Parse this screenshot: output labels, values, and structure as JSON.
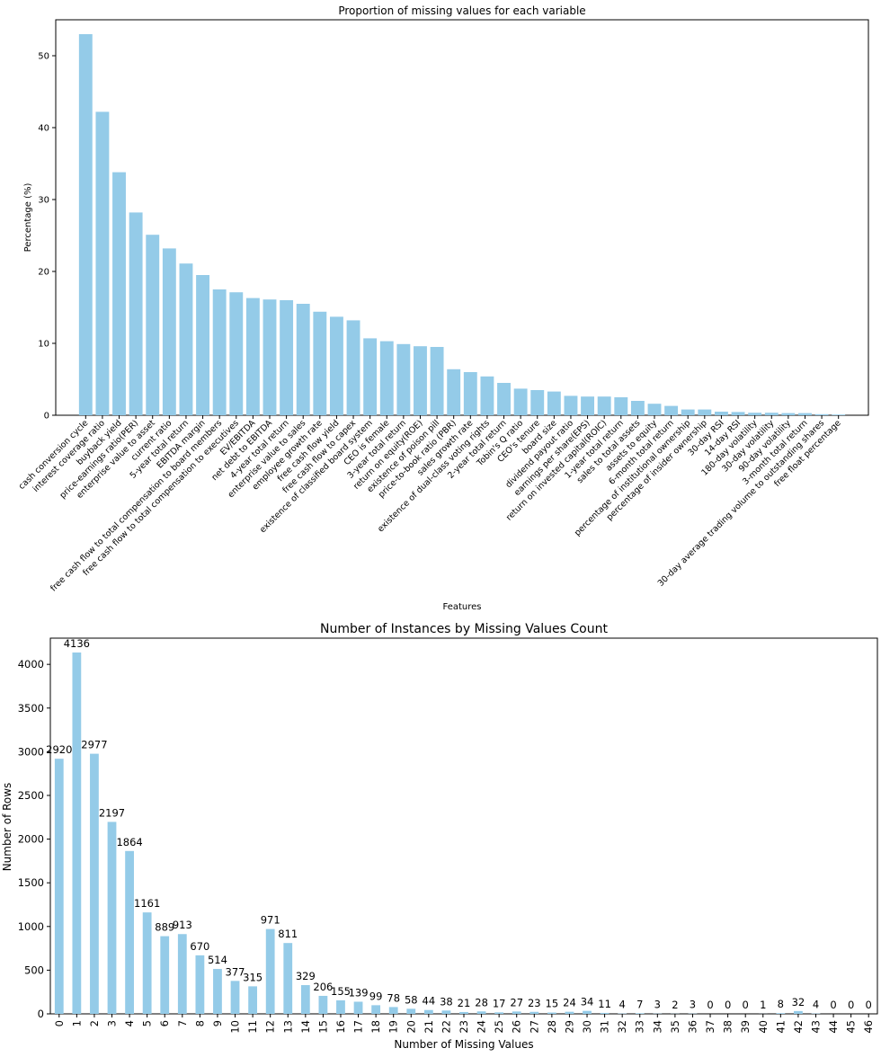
{
  "chart_data": [
    {
      "type": "bar",
      "title": "Proportion of missing values for each variable",
      "xlabel": "Features",
      "ylabel": "Percentage (%)",
      "ylim": [
        0,
        55
      ],
      "yticks": [
        0,
        10,
        20,
        30,
        40,
        50
      ],
      "bar_color": "#94cbe8",
      "grid": false,
      "categories": [
        "cash conversion cycle",
        "interest coverage ratio",
        "buyback yield",
        "price-earnings ratio(PER)",
        "enterprise value to asset",
        "current ratio",
        "5-year total return",
        "EBITDA margin",
        "free cash flow to total compensation to board members",
        "free cash flow to total compensation to executives",
        "EV/EBITDA",
        "net debt to EBITDA",
        "4-year total return",
        "enterprise value to sales",
        "employee growth rate",
        "free cash flow yield",
        "free cash flow to capex",
        "existence of classified board system",
        "CEO is female",
        "3-year total return",
        "return on equity(ROE)",
        "existence of poison pill",
        "price-to-book ratio (PBR)",
        "sales growth rate",
        "existence of dual-class voting rights",
        "2-year total return",
        "Tobin's Q ratio",
        "CEO's tenure",
        "board size",
        "dividend payout ratio",
        "earnings per share(EPS)",
        "return on invested capital(ROIC)",
        "1-year total return",
        "sales to total assets",
        "assets to equity",
        "6-month total return",
        "percentage of institutional ownership",
        "percentage of insider ownership",
        "30-day RSI",
        "14-day RSI",
        "180-day volatility",
        "30-day volatility",
        "90-day volatility",
        "3-month total return",
        "30-day average trading volume to outstanding shares",
        "free float percentage"
      ],
      "values": [
        53.0,
        42.2,
        33.8,
        28.2,
        25.1,
        23.2,
        21.1,
        19.5,
        17.5,
        17.1,
        16.3,
        16.1,
        16.0,
        15.5,
        14.4,
        13.7,
        13.2,
        10.7,
        10.3,
        9.9,
        9.6,
        9.5,
        6.4,
        6.0,
        5.4,
        4.5,
        3.7,
        3.5,
        3.3,
        2.7,
        2.6,
        2.6,
        2.5,
        2.0,
        1.6,
        1.3,
        0.8,
        0.8,
        0.5,
        0.45,
        0.35,
        0.35,
        0.3,
        0.3,
        0.15,
        0.1
      ]
    },
    {
      "type": "bar",
      "title": "Number of Instances by Missing Values Count",
      "xlabel": "Number of Missing Values",
      "ylabel": "Number of Rows",
      "ylim": [
        0,
        4300
      ],
      "yticks": [
        0,
        500,
        1000,
        1500,
        2000,
        2500,
        3000,
        3500,
        4000
      ],
      "bar_color": "#94cbe8",
      "grid": false,
      "categories": [
        "0",
        "1",
        "2",
        "3",
        "4",
        "5",
        "6",
        "7",
        "8",
        "9",
        "10",
        "11",
        "12",
        "13",
        "14",
        "15",
        "16",
        "17",
        "18",
        "19",
        "20",
        "21",
        "22",
        "23",
        "24",
        "25",
        "26",
        "27",
        "28",
        "29",
        "30",
        "31",
        "32",
        "33",
        "34",
        "35",
        "36",
        "37",
        "38",
        "39",
        "40",
        "41",
        "42",
        "43",
        "44",
        "45",
        "46"
      ],
      "values": [
        2920,
        4136,
        2977,
        2197,
        1864,
        1161,
        889,
        913,
        670,
        514,
        377,
        315,
        971,
        811,
        329,
        206,
        155,
        139,
        99,
        78,
        58,
        44,
        38,
        21,
        28,
        17,
        27,
        23,
        15,
        24,
        34,
        11,
        4,
        7,
        3,
        2,
        3,
        0,
        0,
        0,
        1,
        8,
        32,
        4,
        0,
        0,
        0
      ]
    }
  ]
}
